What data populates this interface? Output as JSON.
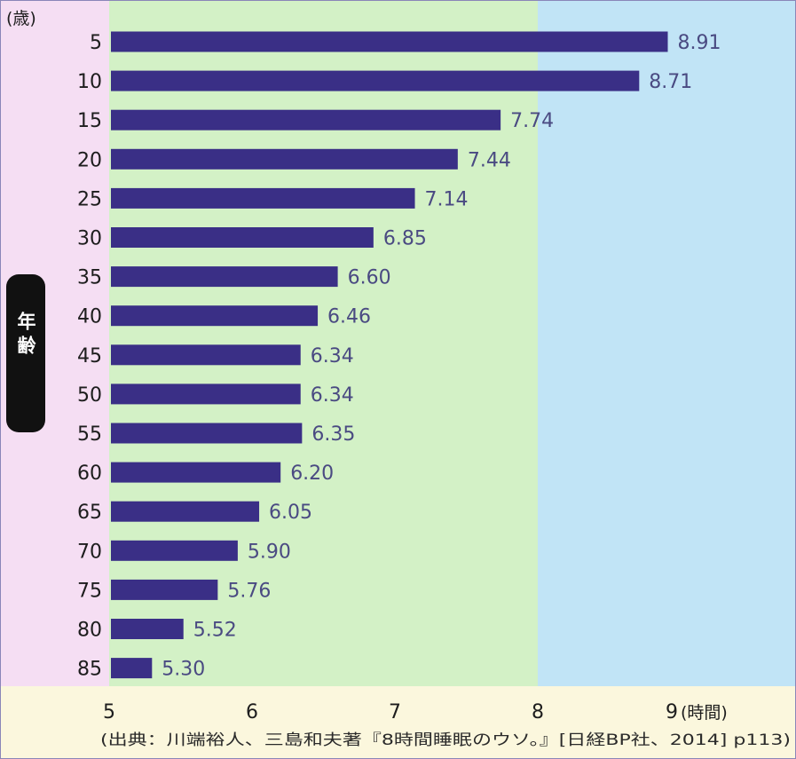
{
  "chart_data": {
    "type": "bar",
    "orientation": "horizontal",
    "categories": [
      "5",
      "10",
      "15",
      "20",
      "25",
      "30",
      "35",
      "40",
      "45",
      "50",
      "55",
      "60",
      "65",
      "70",
      "75",
      "80",
      "85"
    ],
    "values": [
      8.91,
      8.71,
      7.74,
      7.44,
      7.14,
      6.85,
      6.6,
      6.46,
      6.34,
      6.34,
      6.35,
      6.2,
      6.05,
      5.9,
      5.76,
      5.52,
      5.3
    ],
    "value_labels": [
      "8.91",
      "8.71",
      "7.74",
      "7.44",
      "7.14",
      "6.85",
      "6.60",
      "6.46",
      "6.34",
      "6.34",
      "6.35",
      "6.20",
      "6.05",
      "5.90",
      "5.76",
      "5.52",
      "5.30"
    ],
    "x_ticks": [
      "5",
      "6",
      "7",
      "8",
      "9"
    ],
    "x_unit": "(時間)",
    "y_unit": "(歳)",
    "ylabel": "年齢",
    "xlim": [
      5,
      9.9
    ],
    "bands": [
      {
        "from": 5,
        "to": 8,
        "color": "#d3f1c6"
      },
      {
        "from": 8,
        "to": 9.9,
        "color": "#c1e4f6"
      }
    ],
    "bar_color": "#3a2f86",
    "label_column_color": "#f5def3",
    "footer_color": "#fbf7dd",
    "source": "(出典：川端裕人、三島和夫著『8時間睡眠のウソ。』[日経BP社、2014] p113)"
  }
}
